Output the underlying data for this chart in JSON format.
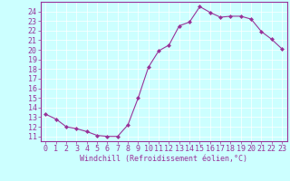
{
  "x": [
    0,
    1,
    2,
    3,
    4,
    5,
    6,
    7,
    8,
    9,
    10,
    11,
    12,
    13,
    14,
    15,
    16,
    17,
    18,
    19,
    20,
    21,
    22,
    23
  ],
  "y": [
    13.3,
    12.8,
    12.0,
    11.8,
    11.5,
    11.1,
    11.0,
    11.0,
    12.2,
    15.0,
    18.2,
    19.9,
    20.5,
    22.5,
    22.9,
    24.5,
    23.9,
    23.4,
    23.5,
    23.5,
    23.2,
    21.9,
    21.1,
    20.1
  ],
  "line_color": "#993399",
  "marker": "D",
  "marker_size": 2,
  "bg_color": "#ccffff",
  "grid_color": "#ffffff",
  "xlabel": "Windchill (Refroidissement éolien,°C)",
  "ylabel_vals": [
    11,
    12,
    13,
    14,
    15,
    16,
    17,
    18,
    19,
    20,
    21,
    22,
    23,
    24
  ],
  "xlim": [
    -0.5,
    23.5
  ],
  "ylim": [
    10.5,
    25.0
  ],
  "xlabel_fontsize": 6,
  "tick_fontsize": 6,
  "tick_color": "#993399",
  "label_color": "#993399",
  "spine_color": "#993399"
}
